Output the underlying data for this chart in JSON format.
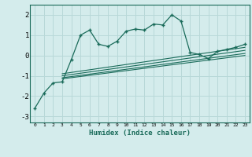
{
  "title": "",
  "xlabel": "Humidex (Indice chaleur)",
  "bg_color": "#d4ecec",
  "grid_color": "#b8d8d8",
  "line_color": "#1a6b5a",
  "xlim": [
    -0.5,
    23.5
  ],
  "ylim": [
    -3.3,
    2.5
  ],
  "xticks": [
    0,
    1,
    2,
    3,
    4,
    5,
    6,
    7,
    8,
    9,
    10,
    11,
    12,
    13,
    14,
    15,
    16,
    17,
    18,
    19,
    20,
    21,
    22,
    23
  ],
  "yticks": [
    -3,
    -2,
    -1,
    0,
    1,
    2
  ],
  "main_x": [
    0,
    1,
    2,
    3,
    4,
    5,
    6,
    7,
    8,
    9,
    10,
    11,
    12,
    13,
    14,
    15,
    16,
    17,
    18,
    19,
    20,
    21,
    22,
    23
  ],
  "main_y": [
    -2.6,
    -1.85,
    -1.35,
    -1.3,
    -0.2,
    1.0,
    1.25,
    0.55,
    0.45,
    0.7,
    1.2,
    1.3,
    1.25,
    1.55,
    1.5,
    2.0,
    1.7,
    0.15,
    0.05,
    -0.15,
    0.2,
    0.3,
    0.4,
    0.55
  ],
  "ref_lines": [
    {
      "x0": 3,
      "y0": -0.9,
      "x1": 23,
      "y1": 0.4
    },
    {
      "x0": 3,
      "y0": -1.0,
      "x1": 23,
      "y1": 0.25
    },
    {
      "x0": 3,
      "y0": -1.1,
      "x1": 23,
      "y1": 0.1
    },
    {
      "x0": 3,
      "y0": -1.15,
      "x1": 23,
      "y1": 0.0
    }
  ]
}
